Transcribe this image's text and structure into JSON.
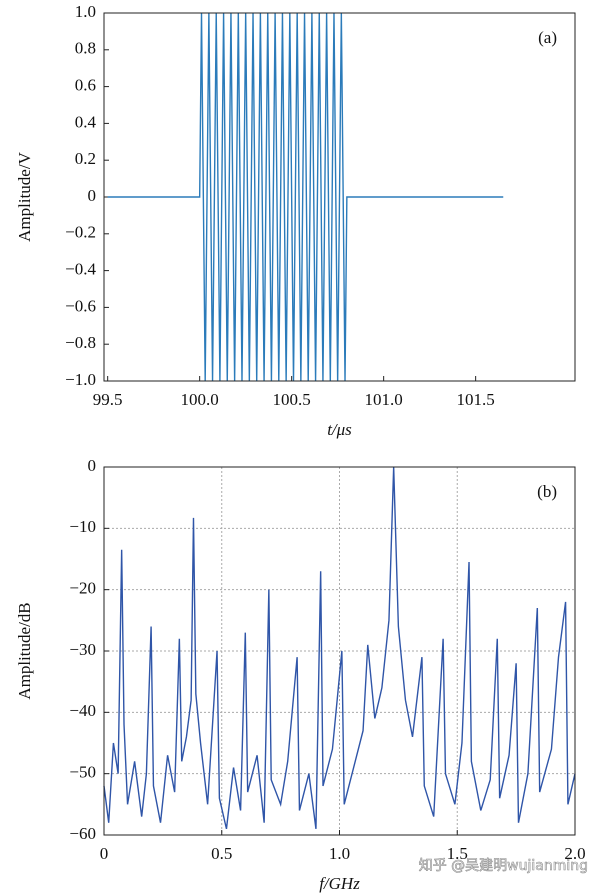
{
  "chart_data": [
    {
      "type": "line",
      "annotation": "(a)",
      "x_label": "t/μs",
      "y_label": "Amplitude/V",
      "grid": false,
      "xlim": [
        99.48,
        102.04
      ],
      "ylim": [
        -1,
        1
      ],
      "xticks": [
        {
          "value": 99.5,
          "label": "99.5"
        },
        {
          "value": 100.0,
          "label": "100.0"
        },
        {
          "value": 100.5,
          "label": "100.5"
        },
        {
          "value": 101.0,
          "label": "101.0"
        },
        {
          "value": 101.5,
          "label": "101.5"
        }
      ],
      "yticks": [
        {
          "value": 1,
          "label": "1.0"
        },
        {
          "value": 0.8,
          "label": "0.8"
        },
        {
          "value": 0.6,
          "label": "0.6"
        },
        {
          "value": 0.4,
          "label": "0.4"
        },
        {
          "value": 0.2,
          "label": "0.2"
        },
        0,
        {
          "value": -0.2,
          "label": "−0.2"
        },
        {
          "value": -0.4,
          "label": "−0.4"
        },
        {
          "value": -0.6,
          "label": "−0.6"
        },
        {
          "value": -0.8,
          "label": "−0.8"
        },
        {
          "value": -1,
          "label": "−1.0"
        }
      ],
      "series": [
        {
          "color": "#2b7bba",
          "x": [
            99.5,
            100.0,
            100.01,
            100.03,
            100.05,
            100.07,
            100.09,
            100.11,
            100.13,
            100.15,
            100.17,
            100.19,
            100.21,
            100.23,
            100.25,
            100.27,
            100.29,
            100.31,
            100.33,
            100.35,
            100.37,
            100.39,
            100.41,
            100.43,
            100.45,
            100.47,
            100.49,
            100.51,
            100.53,
            100.55,
            100.57,
            100.59,
            100.61,
            100.63,
            100.65,
            100.67,
            100.69,
            100.71,
            100.73,
            100.75,
            100.77,
            100.79,
            100.8,
            101.65
          ],
          "values": [
            0,
            0,
            1,
            -1,
            1,
            -1,
            1,
            -1,
            1,
            -1,
            1,
            -1,
            1,
            -1,
            1,
            -1,
            1,
            -1,
            1,
            -1,
            1,
            -1,
            1,
            -1,
            1,
            -1,
            1,
            -1,
            1,
            -1,
            1,
            -1,
            1,
            -1,
            1,
            -1,
            1,
            -1,
            1,
            -1,
            1,
            -1,
            0,
            0
          ]
        }
      ]
    },
    {
      "type": "line",
      "annotation": "(b)",
      "x_label": "f/GHz",
      "y_label": "Amplitude/dB",
      "grid": true,
      "xlim": [
        0,
        2
      ],
      "ylim": [
        -60,
        0
      ],
      "xticks": [
        0,
        0.5,
        {
          "value": 1,
          "label": "1.0"
        },
        1.5,
        {
          "value": 2,
          "label": "2.0"
        }
      ],
      "yticks": [
        0,
        {
          "value": -10,
          "label": "−10"
        },
        {
          "value": -20,
          "label": "−20"
        },
        {
          "value": -30,
          "label": "−30"
        },
        {
          "value": -40,
          "label": "−40"
        },
        {
          "value": -50,
          "label": "−50"
        },
        {
          "value": -60,
          "label": "−60"
        }
      ],
      "series": [
        {
          "color": "#2f55a8",
          "x": [
            0,
            0.02,
            0.04,
            0.06,
            0.075,
            0.085,
            0.1,
            0.13,
            0.16,
            0.18,
            0.2,
            0.21,
            0.24,
            0.27,
            0.3,
            0.32,
            0.33,
            0.35,
            0.37,
            0.38,
            0.39,
            0.41,
            0.44,
            0.48,
            0.49,
            0.52,
            0.55,
            0.58,
            0.6,
            0.61,
            0.65,
            0.68,
            0.7,
            0.71,
            0.75,
            0.78,
            0.82,
            0.83,
            0.87,
            0.9,
            0.92,
            0.93,
            0.97,
            1.01,
            1.02,
            1.06,
            1.1,
            1.12,
            1.15,
            1.18,
            1.21,
            1.23,
            1.25,
            1.28,
            1.31,
            1.35,
            1.36,
            1.4,
            1.44,
            1.45,
            1.49,
            1.52,
            1.55,
            1.56,
            1.6,
            1.64,
            1.67,
            1.68,
            1.72,
            1.75,
            1.76,
            1.8,
            1.84,
            1.85,
            1.9,
            1.93,
            1.96,
            1.97,
            2.0
          ],
          "values": [
            -52,
            -58,
            -45,
            -50,
            -13.5,
            -42,
            -55,
            -48,
            -57,
            -50,
            -26,
            -52,
            -58,
            -47,
            -53,
            -28,
            -48,
            -44,
            -38,
            -8.3,
            -37,
            -45,
            -55,
            -30,
            -54,
            -59,
            -49,
            -56,
            -27,
            -53,
            -47,
            -58,
            -20,
            -51,
            -55,
            -48,
            -31,
            -56,
            -50,
            -59,
            -17,
            -52,
            -46,
            -30,
            -55,
            -49,
            -43,
            -29,
            -41,
            -36,
            -25,
            0,
            -26,
            -38,
            -44,
            -31,
            -52,
            -57,
            -28,
            -50,
            -55,
            -45,
            -15.5,
            -48,
            -56,
            -51,
            -28,
            -54,
            -47,
            -32,
            -58,
            -50,
            -23,
            -53,
            -46,
            -31,
            -22,
            -55,
            -50
          ]
        }
      ]
    }
  ],
  "watermark": "知乎 @吴建明wujianming"
}
